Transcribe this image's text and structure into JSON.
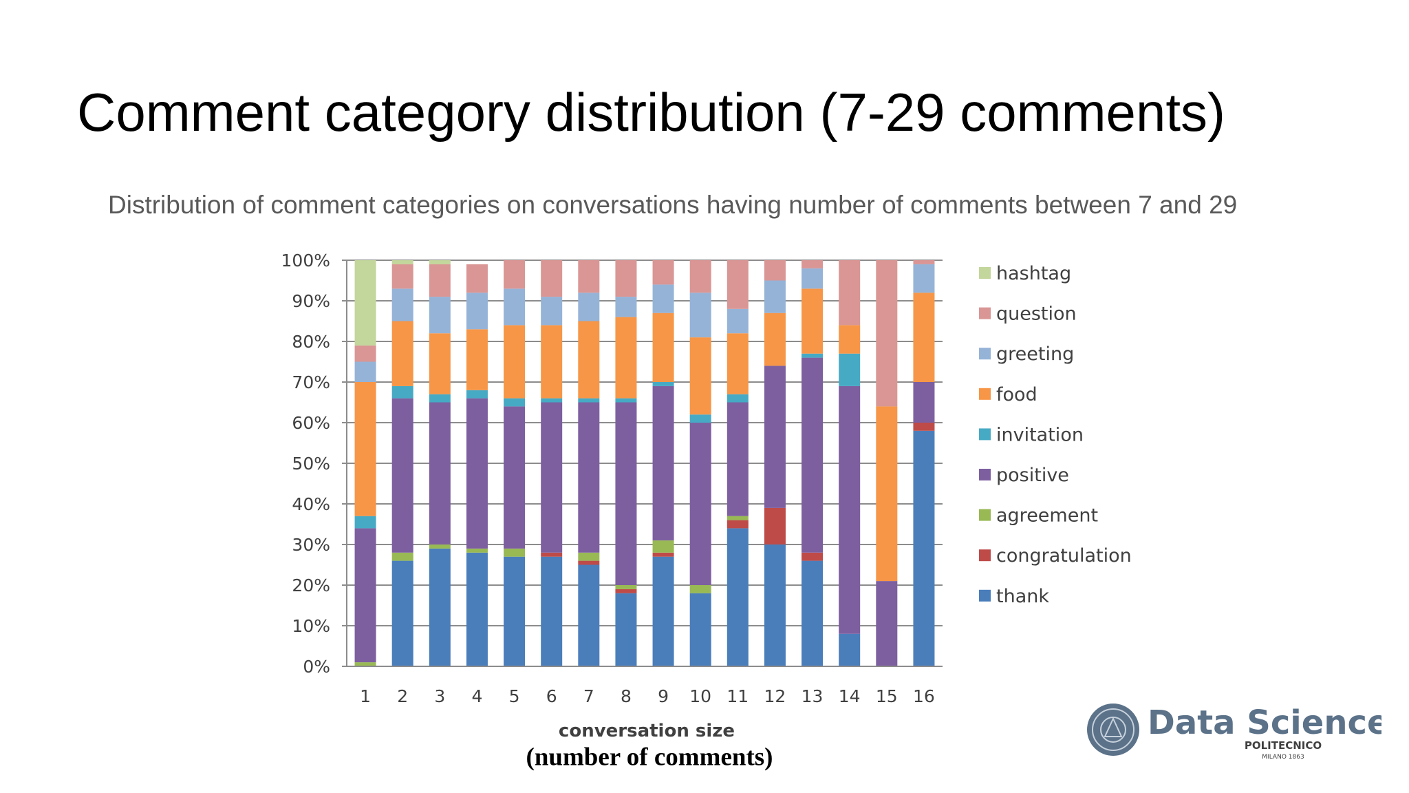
{
  "slide": {
    "title": "Comment category distribution (7-29 comments)",
    "subtitle": "Distribution of comment categories on conversations having number of comments between 7 and 29",
    "axis_note": "(number of comments)"
  },
  "logo": {
    "name": "Data Science",
    "line1": "POLITECNICO",
    "line2": "MILANO 1863",
    "color": "#5b7289"
  },
  "chart_data": {
    "type": "bar",
    "stacked": true,
    "percent": true,
    "xlabel": "conversation size",
    "ylabel": "",
    "ylim": [
      0,
      100
    ],
    "y_ticks": [
      "0%",
      "10%",
      "20%",
      "30%",
      "40%",
      "50%",
      "60%",
      "70%",
      "80%",
      "90%",
      "100%"
    ],
    "grid": true,
    "legend_position": "right",
    "categories": [
      "1",
      "2",
      "3",
      "4",
      "5",
      "6",
      "7",
      "8",
      "9",
      "10",
      "11",
      "12",
      "13",
      "14",
      "15",
      "16"
    ],
    "series": [
      {
        "name": "thank",
        "color": "#4a7ebb",
        "values": [
          0,
          26,
          29,
          28,
          27,
          27,
          25,
          18,
          27,
          18,
          34,
          30,
          26,
          8,
          0,
          58
        ]
      },
      {
        "name": "congratulation",
        "color": "#be4b48",
        "values": [
          0,
          0,
          0,
          0,
          0,
          1,
          1,
          1,
          1,
          0,
          2,
          9,
          2,
          0,
          0,
          2
        ]
      },
      {
        "name": "agreement",
        "color": "#98b954",
        "values": [
          1,
          2,
          1,
          1,
          2,
          0,
          2,
          1,
          3,
          2,
          1,
          0,
          0,
          0,
          0,
          0
        ]
      },
      {
        "name": "positive",
        "color": "#7d5fa0",
        "values": [
          33,
          38,
          35,
          37,
          35,
          37,
          37,
          45,
          38,
          40,
          28,
          35,
          48,
          61,
          21,
          10
        ]
      },
      {
        "name": "invitation",
        "color": "#46aac5",
        "values": [
          3,
          3,
          2,
          2,
          2,
          1,
          1,
          1,
          1,
          2,
          2,
          0,
          1,
          8,
          0,
          0
        ]
      },
      {
        "name": "food",
        "color": "#f79646",
        "values": [
          33,
          16,
          15,
          15,
          18,
          18,
          19,
          20,
          17,
          19,
          15,
          13,
          16,
          7,
          43,
          22
        ]
      },
      {
        "name": "greeting",
        "color": "#95b3d7",
        "values": [
          5,
          8,
          9,
          9,
          9,
          7,
          7,
          5,
          7,
          11,
          6,
          8,
          5,
          0,
          0,
          7
        ]
      },
      {
        "name": "question",
        "color": "#d99694",
        "values": [
          4,
          6,
          8,
          7,
          7,
          9,
          8,
          9,
          6,
          8,
          12,
          5,
          2,
          16,
          36,
          1
        ]
      },
      {
        "name": "hashtag",
        "color": "#c3d69b",
        "values": [
          21,
          1,
          1,
          0,
          0,
          0,
          0,
          0,
          0,
          0,
          0,
          0,
          0,
          0,
          0,
          0
        ]
      }
    ],
    "legend_order": [
      "hashtag",
      "question",
      "greeting",
      "food",
      "invitation",
      "positive",
      "agreement",
      "congratulation",
      "thank"
    ]
  }
}
